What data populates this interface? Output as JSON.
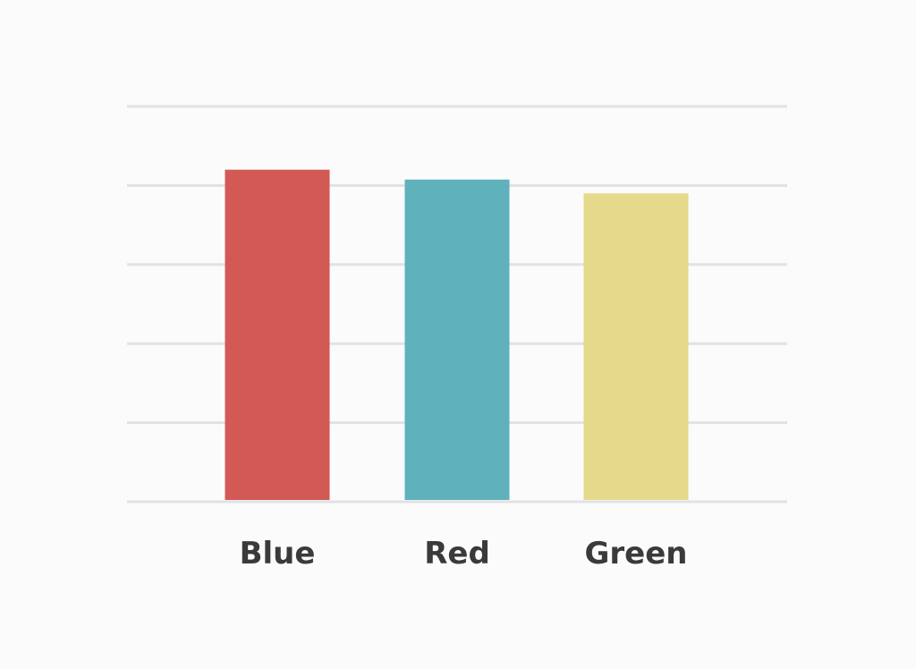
{
  "chart_data": {
    "type": "bar",
    "title": "",
    "xlabel": "",
    "ylabel": "",
    "categories": [
      "Blue",
      "Red",
      "Green"
    ],
    "values": [
      84,
      81.5,
      78
    ],
    "ylim": [
      0,
      100
    ],
    "grid": true,
    "colors": [
      "#d35a54",
      "#5fb1bc",
      "#e5d98b"
    ]
  },
  "colors": {
    "background": "#fbfbfb",
    "gridline": "#e0e2e5",
    "label_text": "#3a3a3a"
  }
}
